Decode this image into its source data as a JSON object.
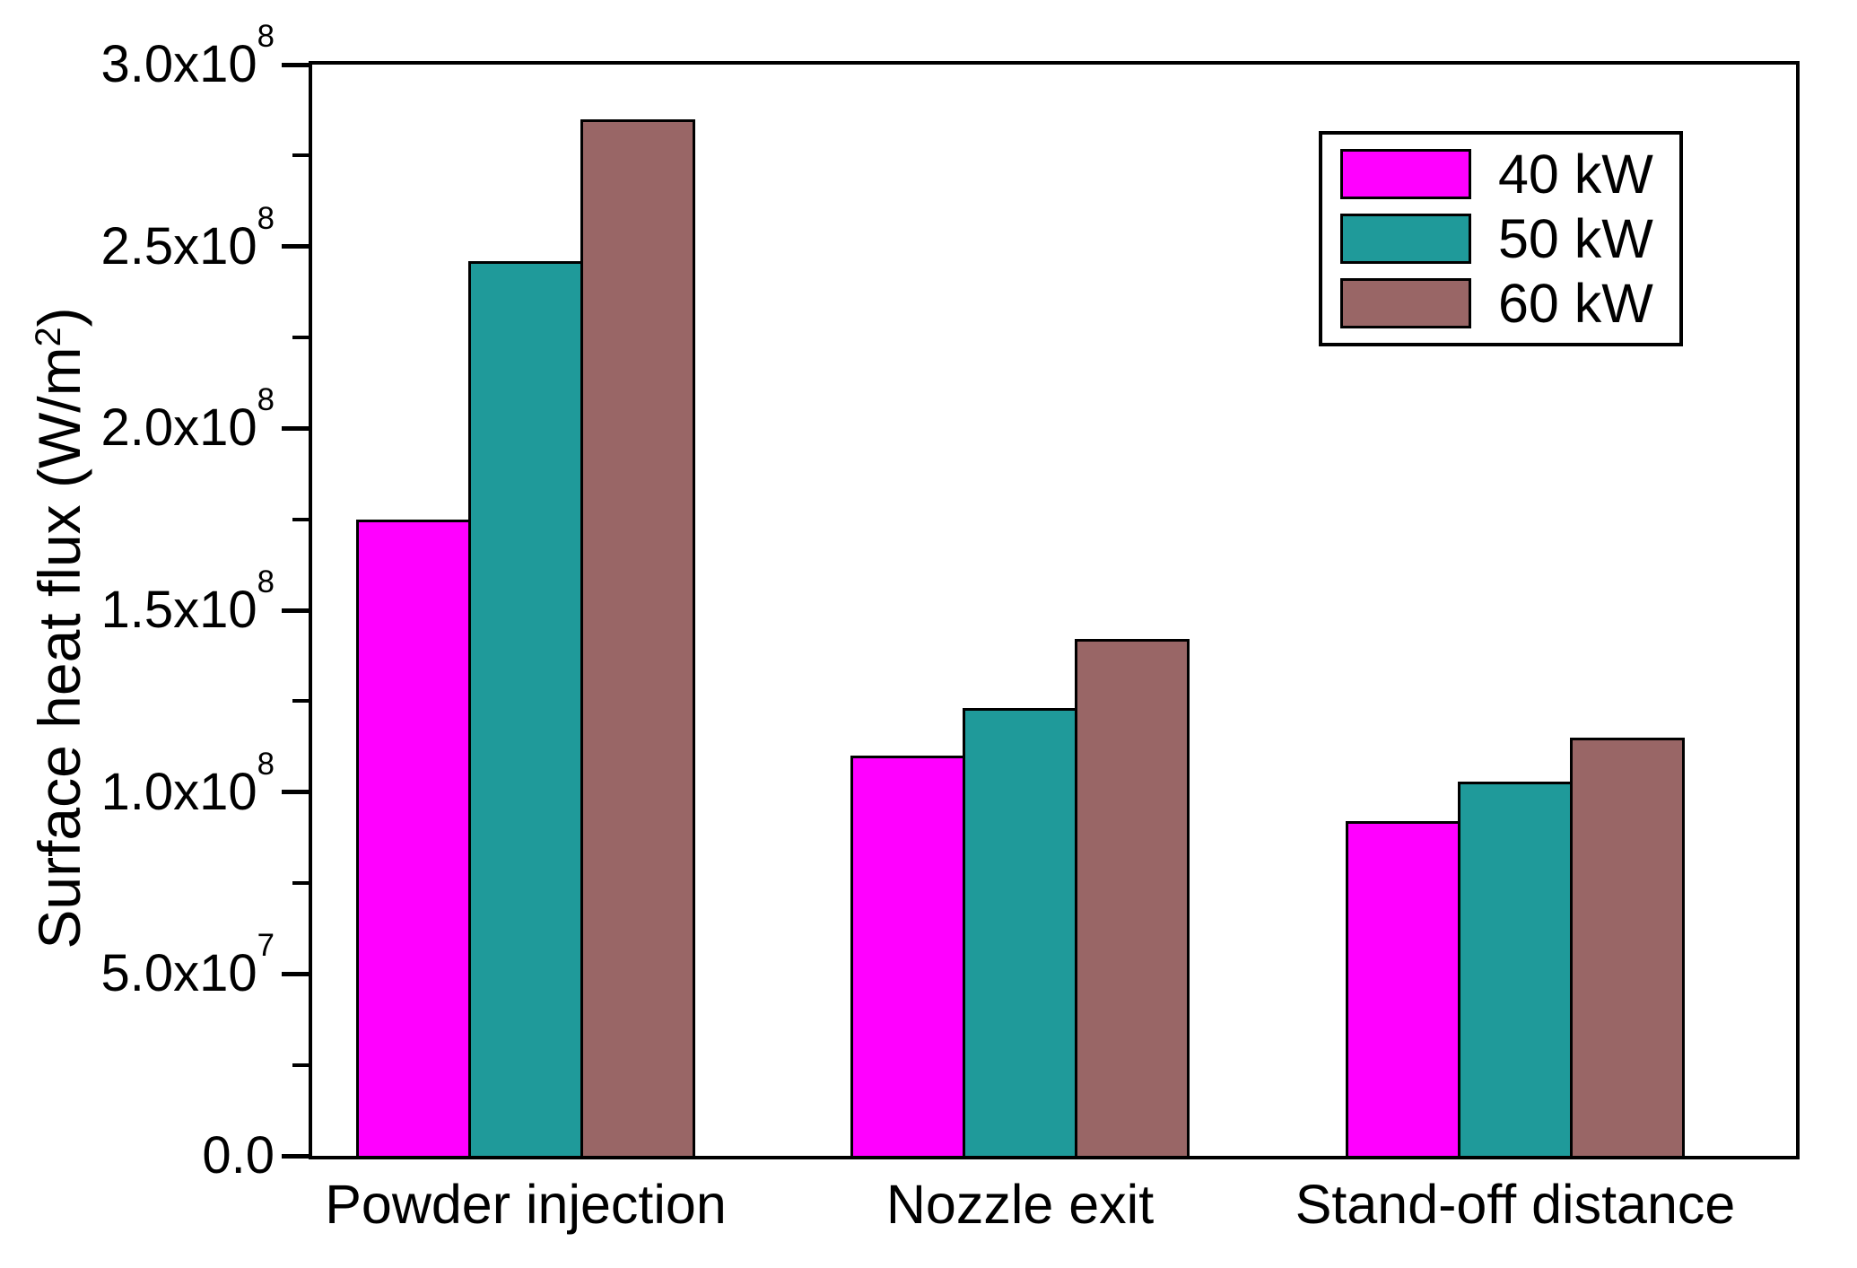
{
  "chart_data": {
    "type": "bar",
    "title": "",
    "categories": [
      "Powder injection",
      "Nozzle exit",
      "Stand-off distance"
    ],
    "series": [
      {
        "name": "40 kW",
        "color": "#ff00ff",
        "values": [
          175000000,
          110000000,
          92000000
        ]
      },
      {
        "name": "50 kW",
        "color": "#1f9a9a",
        "values": [
          246000000,
          123000000,
          103000000
        ]
      },
      {
        "name": "60 kW",
        "color": "#996666",
        "values": [
          285000000,
          142000000,
          115000000
        ]
      }
    ],
    "xlabel": "",
    "ylabel": "Surface heat flux (W/m^2)",
    "ylabel_parts": {
      "prefix": "Surface heat flux (W/m",
      "sup": "2",
      "suffix": ")"
    },
    "ylim": [
      0,
      300000000
    ],
    "yticks": [
      {
        "value": 0,
        "m": "0.0",
        "e": ""
      },
      {
        "value": 50000000,
        "m": "5.0x10",
        "e": "7"
      },
      {
        "value": 100000000,
        "m": "1.0x10",
        "e": "8"
      },
      {
        "value": 150000000,
        "m": "1.5x10",
        "e": "8"
      },
      {
        "value": 200000000,
        "m": "2.0x10",
        "e": "8"
      },
      {
        "value": 250000000,
        "m": "2.5x10",
        "e": "8"
      },
      {
        "value": 300000000,
        "m": "3.0x10",
        "e": "8"
      }
    ],
    "yticks_minor": [
      25000000,
      75000000,
      125000000,
      175000000,
      225000000,
      275000000
    ],
    "grid": false,
    "legend_position": "top-right",
    "axis_color": "#000000",
    "bar_border_color": "#000000",
    "background_color": "#ffffff"
  }
}
